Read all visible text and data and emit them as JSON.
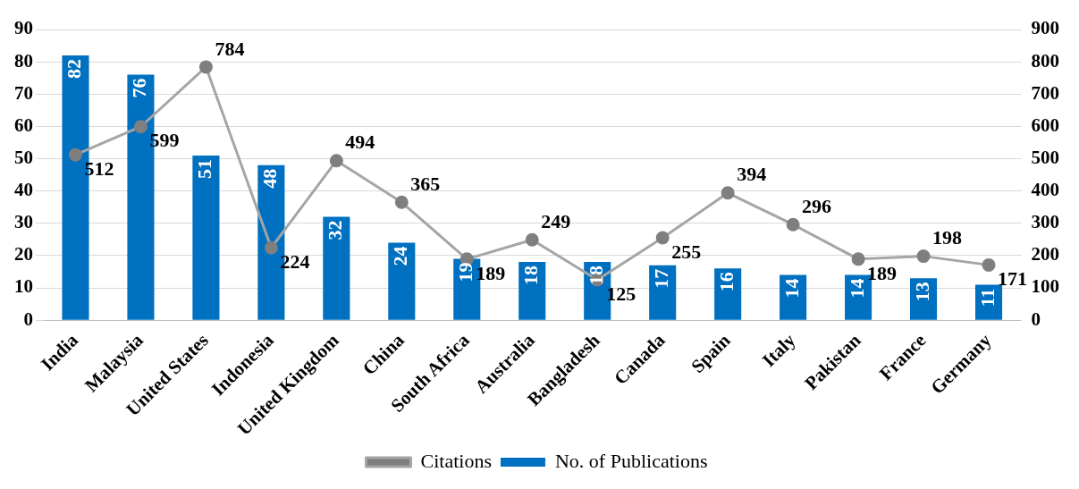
{
  "chart_data": {
    "type": "bar",
    "categories": [
      "India",
      "Malaysia",
      "United States",
      "Indonesia",
      "United Kingdom",
      "China",
      "South Africa",
      "Australia",
      "Bangladesh",
      "Canada",
      "Spain",
      "Italy",
      "Pakistan",
      "France",
      "Germany"
    ],
    "series": [
      {
        "name": "No. of Publications",
        "color": "#0070c0",
        "values": [
          82,
          76,
          51,
          48,
          32,
          24,
          19,
          18,
          18,
          17,
          16,
          14,
          14,
          13,
          11
        ]
      },
      {
        "name": "Citations",
        "type": "line",
        "axis": "y2",
        "color": "#a5a5a5",
        "values": [
          512,
          599,
          784,
          224,
          494,
          365,
          189,
          249,
          125,
          255,
          394,
          296,
          189,
          198,
          171
        ]
      }
    ],
    "ylim": [
      0,
      90
    ],
    "yticks": [
      0,
      10,
      20,
      30,
      40,
      50,
      60,
      70,
      80,
      90
    ],
    "y2lim": [
      0,
      900
    ],
    "y2ticks": [
      0,
      100,
      200,
      300,
      400,
      500,
      600,
      700,
      800,
      900
    ],
    "grid": "y",
    "legend": "bottom",
    "marker": "circle",
    "line_style": "solid",
    "data_labels": true
  }
}
